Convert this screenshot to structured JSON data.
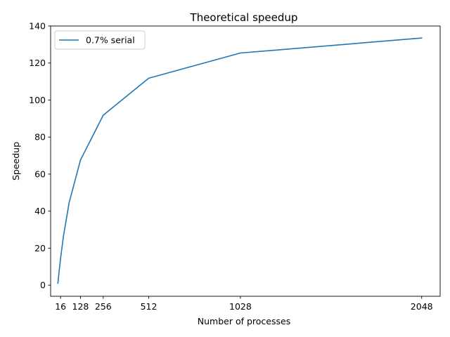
{
  "chart_data": {
    "type": "line",
    "title": "Theoretical speedup",
    "xlabel": "Number of processes",
    "ylabel": "Speedup",
    "xlim": [
      -40,
      2152
    ],
    "ylim": [
      -6,
      140
    ],
    "xticks": [
      16,
      128,
      256,
      512,
      1028,
      2048
    ],
    "yticks": [
      0,
      20,
      40,
      60,
      80,
      100,
      120,
      140
    ],
    "grid": false,
    "legend_position": "top-left",
    "series": [
      {
        "name": "0.7% serial",
        "color": "#1f77b4",
        "x": [
          1,
          2,
          4,
          8,
          16,
          32,
          64,
          128,
          256,
          512,
          1028,
          2048
        ],
        "y": [
          1.0,
          1.99,
          3.92,
          7.65,
          14.5,
          26.4,
          44.5,
          67.6,
          91.8,
          111.8,
          125.4,
          133.5
        ]
      }
    ]
  }
}
